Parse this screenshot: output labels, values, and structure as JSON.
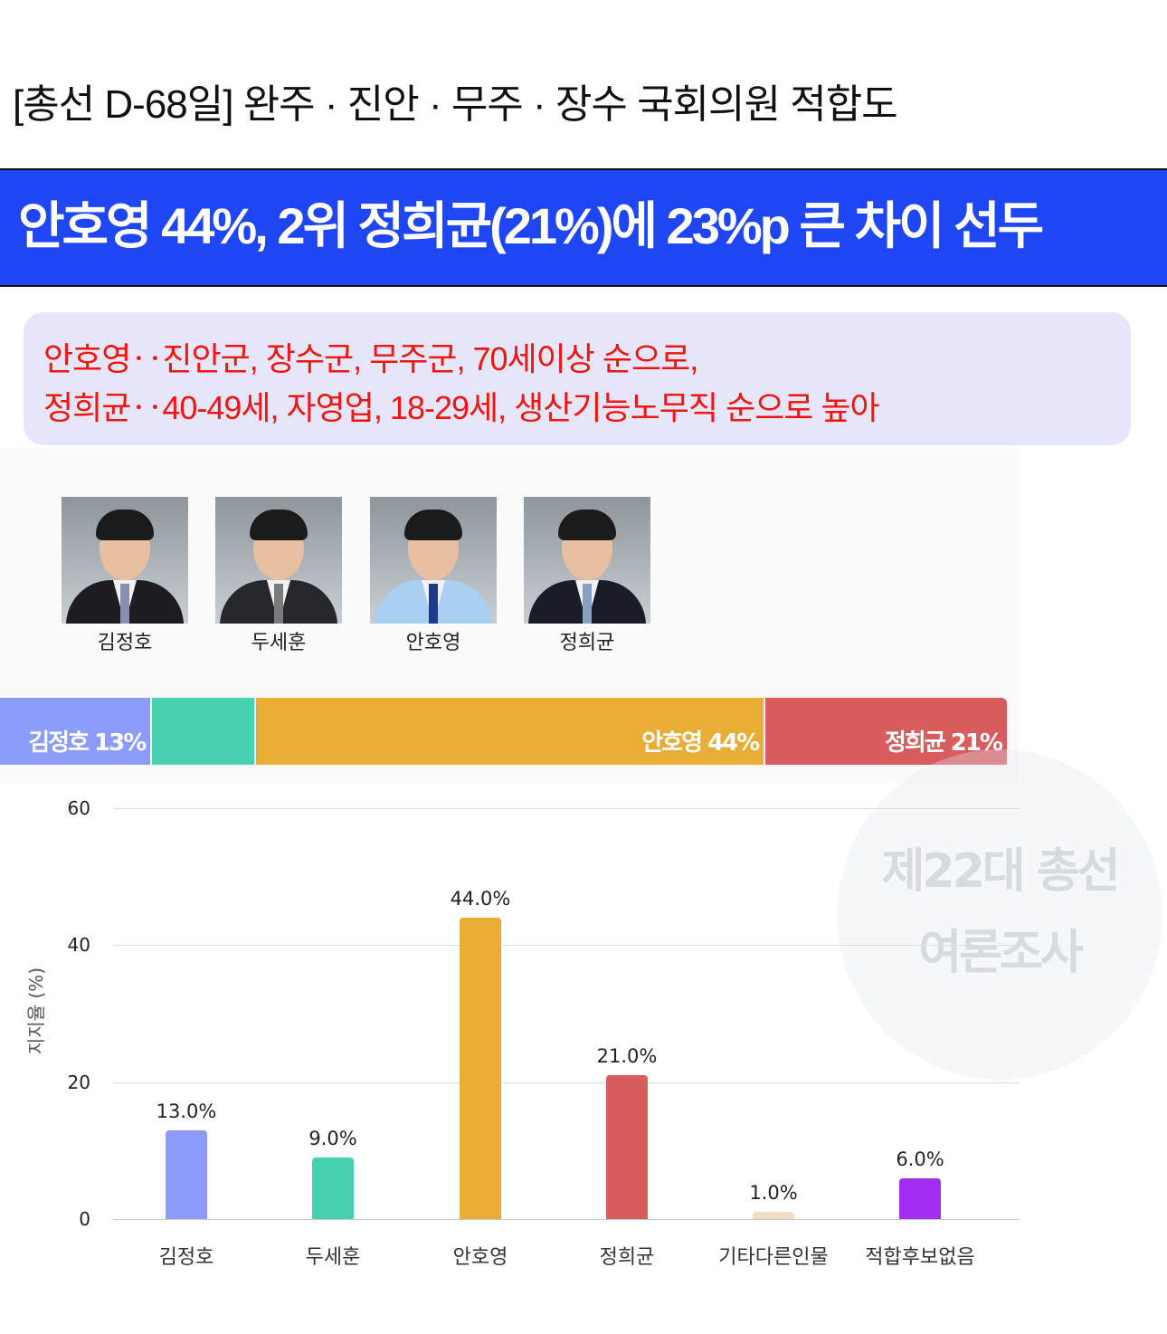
{
  "header": {
    "title": "[총선 D-68일] 완주 · 진안 · 무주 · 장수 국회의원 적합도",
    "headline": "안호영 44%, 2위 정희균(21%)에 23%p 큰 차이 선두",
    "subtitle_lines": [
      "안호영‥진안군, 장수군, 무주군, 70세이상 순으로,",
      "정희균‥40-49세, 자영업, 18-29세, 생산기능노무직 순으로 높아"
    ],
    "banner_color": "#1f46f3"
  },
  "candidates": [
    {
      "name": "김정호",
      "suit_color": "#1c1c22",
      "tie_color": "#8a8fb0"
    },
    {
      "name": "두세훈",
      "suit_color": "#26282e",
      "tie_color": "#7a7a7a"
    },
    {
      "name": "안호영",
      "suit_color": "#a9d0f0",
      "tie_color": "#1d3b8a"
    },
    {
      "name": "정희균",
      "suit_color": "#1a1d28",
      "tie_color": "#8aa0c0"
    }
  ],
  "stacked_bar": [
    {
      "value": 13,
      "label": "김정호 13%",
      "color": "#8b9cfb"
    },
    {
      "value": 9,
      "label": "",
      "color": "#48d1b0"
    },
    {
      "value": 44,
      "label": "안호영 44%",
      "color": "#e9ac35"
    },
    {
      "value": 21,
      "label": "정희균 21%",
      "color": "#d95c5e"
    }
  ],
  "watermark": [
    "제22대 총선",
    "여론조사"
  ],
  "chart_data": {
    "type": "bar",
    "categories": [
      "김정호",
      "두세훈",
      "안호영",
      "정희균",
      "기타다른인물",
      "적합후보없음"
    ],
    "values": [
      13.0,
      9.0,
      44.0,
      21.0,
      1.0,
      6.0
    ],
    "data_labels": [
      "13.0%",
      "9.0%",
      "44.0%",
      "21.0%",
      "1.0%",
      "6.0%"
    ],
    "colors": [
      "#8b9cfb",
      "#48d1b0",
      "#e9ac35",
      "#d95c5e",
      "#f3dfc6",
      "#a22ef2"
    ],
    "ylabel": "지지율 (%)",
    "yticks": [
      "0",
      "20",
      "40",
      "60"
    ],
    "ylim": [
      0,
      60
    ],
    "grid": true
  }
}
